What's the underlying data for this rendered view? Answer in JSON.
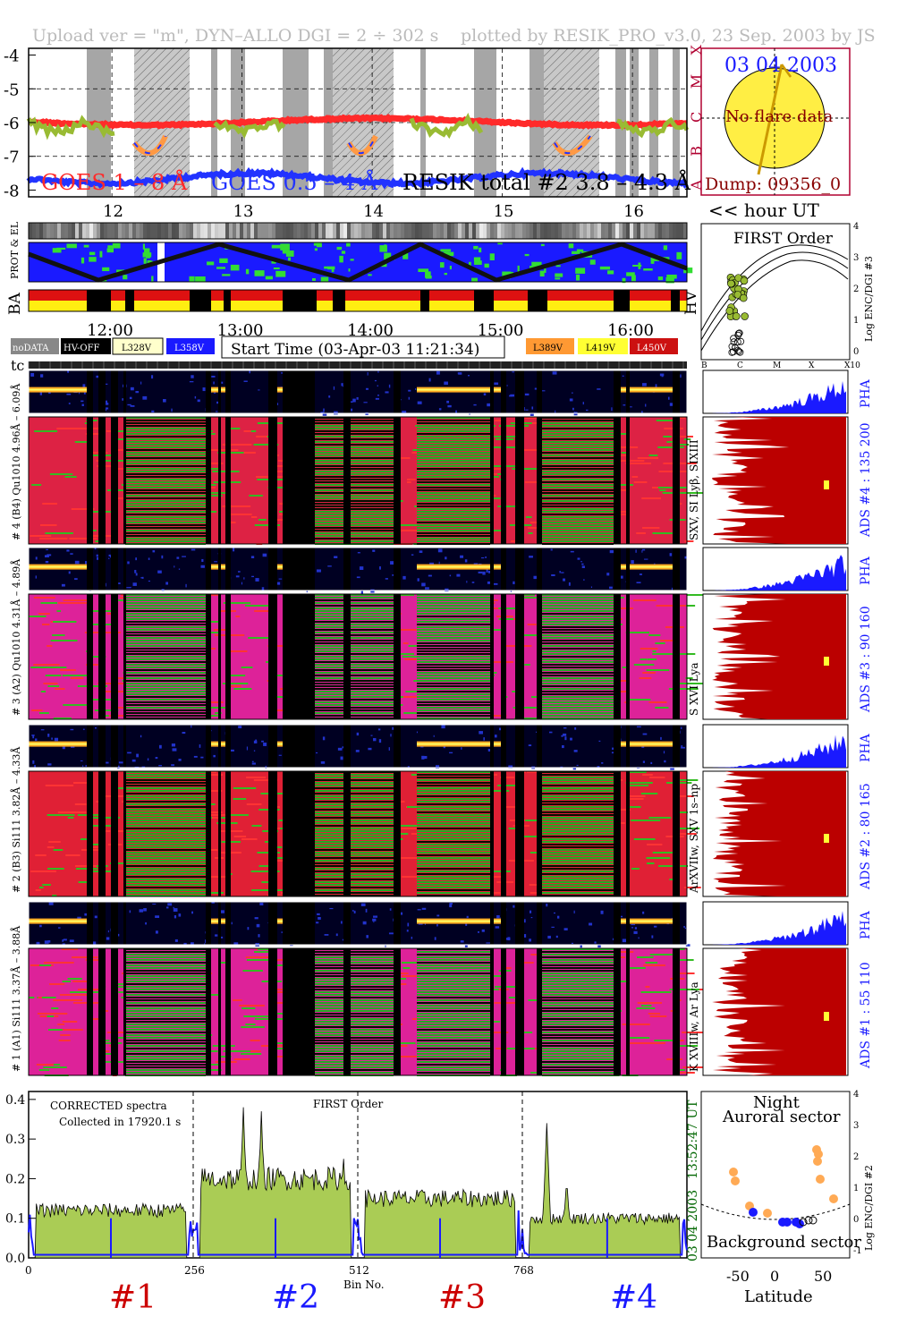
{
  "header": {
    "left": "Upload ver = \"m\", DYN–ALLO DGI =   2 ÷ 302 s",
    "right": "plotted by RESIK_PRO_v3.0, 23 Sep. 2003 by JS"
  },
  "goes_panel": {
    "y_ticks": [
      "-4",
      "-5",
      "-6",
      "-7",
      "-8"
    ],
    "y_range": [
      -8.2,
      -3.8
    ],
    "flare_classes": [
      "X",
      "M",
      "C",
      "B",
      "A"
    ],
    "labels": [
      "GOES 1 – 8 Å",
      "GOES 0.5 – 4 Å",
      "RESIK total #2  3.8 – 4.3 Å"
    ],
    "colors": {
      "goes_long": "#ff2a2a",
      "goes_short": "#2233ff",
      "resik": "#99bb33"
    }
  },
  "sun_panel": {
    "date": "03 04 2003",
    "text": "No flare data",
    "dump": "Dump: 09356_0"
  },
  "hour_axis": {
    "ticks": [
      "12",
      "13",
      "14",
      "15",
      "16"
    ],
    "label": "<< hour UT"
  },
  "status_labels": {
    "prot_el": "PROT & EL",
    "ba": "BA",
    "hv": "HV",
    "tc": "tc"
  },
  "time_axis": {
    "ticks": [
      "12:00",
      "13:00",
      "14:00",
      "15:00",
      "16:00"
    ]
  },
  "legend": {
    "nodata": "noDATA",
    "hvoff": "HV-OFF",
    "v1": "L328V",
    "v2": "L358V",
    "start_time": "Start Time (03-Apr-03 11:21:34)",
    "v3": "L389V",
    "v4": "L419V",
    "v5": "L450V"
  },
  "first_order": {
    "title": "FIRST Order",
    "y_ticks": [
      "4",
      "3",
      "2",
      "1",
      "0"
    ],
    "y_label": "Log ENC/DGI #3",
    "x_ticks": [
      "B",
      "C",
      "M",
      "X",
      "X10"
    ]
  },
  "channels": [
    {
      "pha_label": "# 4 (B4) Qu1010 4.96Å – 6.09Å",
      "spec_label": "# 4 (B4) Qu1010 4.96Å – 6.09Å",
      "lines": "SXV, SI Lyβ, SIXIII",
      "ads": "ADS #4 :   135 200"
    },
    {
      "pha_label": "# 3 (A2) Qu1010 4.31Å – 4.89Å",
      "spec_label": "# 3 (A2) Qu1010 4.31Å – 4.89Å",
      "lines": "S XVI Lya",
      "ads": "ADS #3 :   90 160"
    },
    {
      "pha_label": "# 2 (B3) Si111 3.82Å – 4.33Å",
      "spec_label": "# 2 (B3) Si111 3.82Å – 4.33Å",
      "lines": "ArXVIIw, SXV 1s–np",
      "ads": "ADS #2 :   80 165"
    },
    {
      "pha_label": "# 1 (A1) Si111 3.37Å – 3.88Å",
      "spec_label": "# 1 (A1) Si111 3.37Å – 3.88Å",
      "lines": "K XVIIIw, Ar Lya",
      "ads": "ADS #1 :   55 110"
    }
  ],
  "pha": "PHA",
  "spectrum": {
    "label1": "CORRECTED spectra",
    "label2": "Collected in 17920.1 s",
    "label3": "FIRST Order",
    "y_ticks": [
      "0.4",
      "0.3",
      "0.2",
      "0.1",
      "0.0"
    ],
    "x_ticks": [
      "0",
      "256",
      "512",
      "768"
    ],
    "x_label": "Bin No.",
    "time": "13:52:47 UT",
    "date": "03 04 2003",
    "ylim": [
      0,
      0.42
    ],
    "xlim": [
      0,
      1024
    ]
  },
  "channel_numbers": [
    "#1",
    "#2",
    "#3",
    "#4"
  ],
  "latitude_panel": {
    "night": "Night",
    "auroral": "Auroral sector",
    "background": "Background sector",
    "x_ticks": [
      "-50",
      "0",
      "50"
    ],
    "x_label": "Latitude",
    "y_ticks": [
      "4",
      "3",
      "2",
      "1",
      "0",
      "-1"
    ],
    "y_label": "Log ENC/DGI #2"
  },
  "chart_data": [
    {
      "type": "line",
      "title": "",
      "ylim": [
        -8.2,
        -3.8
      ],
      "series": [
        {
          "name": "GOES 1 – 8 Å",
          "approx_level": -6.0
        },
        {
          "name": "GOES 0.5 – 4 Å",
          "approx_level": -7.7
        },
        {
          "name": "RESIK total #2  3.8 – 4.3 Å",
          "approx_level": -6.1
        }
      ]
    },
    {
      "type": "area",
      "xlabel": "Bin No.",
      "xlim": [
        0,
        1024
      ],
      "ylim": [
        0,
        0.42
      ],
      "channel_levels": [
        0.12,
        0.2,
        0.15,
        0.1
      ],
      "peaks": [
        [
          334,
          0.38
        ],
        [
          362,
          0.37
        ],
        [
          490,
          0.25
        ],
        [
          806,
          0.34
        ],
        [
          837,
          0.2
        ]
      ]
    }
  ]
}
